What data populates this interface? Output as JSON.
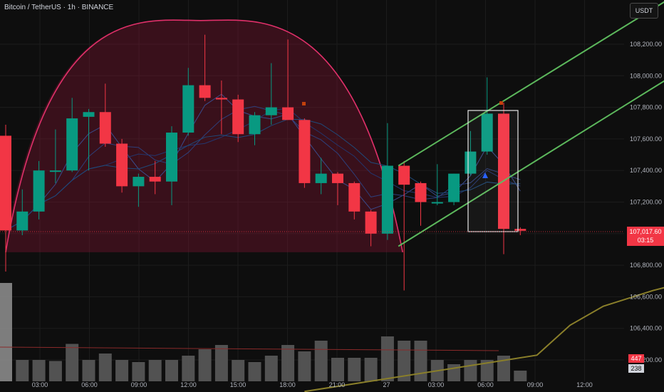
{
  "header": {
    "symbol_title": "Bitcoin / TetherUS · 1h · BINANCE",
    "currency": "USDT"
  },
  "price_label": {
    "price": "107,017.60",
    "countdown": "03:15"
  },
  "volume_labels": {
    "vol_a": "447",
    "vol_b": "238"
  },
  "colors": {
    "up": "#089981",
    "down": "#f23645",
    "arc": "#e0306a",
    "channel": "#5cb85c",
    "ma": "#8a7f2a",
    "volume": "#7a7a7a"
  },
  "chart_data": {
    "type": "candlestick",
    "title": "Bitcoin / TetherUS · 1h · BINANCE",
    "ylim": [
      106200,
      108400
    ],
    "yticks": [
      108200,
      108000,
      107800,
      107600,
      107400,
      107200,
      107000,
      106800,
      106600,
      106400,
      106200
    ],
    "ytick_labels": [
      "108,200.00",
      "108,000.00",
      "107,800.00",
      "107,600.00",
      "107,400.00",
      "107,200.00",
      "107,000.00",
      "106,800.00",
      "106,600.00",
      "106,400.00",
      "106,200.00"
    ],
    "xticks": [
      "03:00",
      "06:00",
      "09:00",
      "12:00",
      "15:00",
      "18:00",
      "21:00",
      "27",
      "03:00",
      "06:00",
      "09:00",
      "12:00"
    ],
    "candles": [
      {
        "o": 107620,
        "h": 107690,
        "l": 106760,
        "c": 107020
      },
      {
        "o": 107020,
        "h": 107280,
        "l": 106990,
        "c": 107140
      },
      {
        "o": 107140,
        "h": 107460,
        "l": 107090,
        "c": 107400
      },
      {
        "o": 107400,
        "h": 107660,
        "l": 107320,
        "c": 107400
      },
      {
        "o": 107400,
        "h": 107860,
        "l": 107390,
        "c": 107730
      },
      {
        "o": 107740,
        "h": 107790,
        "l": 107400,
        "c": 107770
      },
      {
        "o": 107770,
        "h": 107950,
        "l": 107550,
        "c": 107570
      },
      {
        "o": 107570,
        "h": 107600,
        "l": 107260,
        "c": 107300
      },
      {
        "o": 107300,
        "h": 107380,
        "l": 107170,
        "c": 107360
      },
      {
        "o": 107360,
        "h": 107460,
        "l": 107250,
        "c": 107330
      },
      {
        "o": 107330,
        "h": 107680,
        "l": 107180,
        "c": 107640
      },
      {
        "o": 107640,
        "h": 108050,
        "l": 107620,
        "c": 107940
      },
      {
        "o": 107940,
        "h": 108260,
        "l": 107840,
        "c": 107860
      },
      {
        "o": 107860,
        "h": 107970,
        "l": 107630,
        "c": 107850
      },
      {
        "o": 107850,
        "h": 107880,
        "l": 107580,
        "c": 107630
      },
      {
        "o": 107630,
        "h": 107770,
        "l": 107560,
        "c": 107750
      },
      {
        "o": 107750,
        "h": 108080,
        "l": 107690,
        "c": 107800
      },
      {
        "o": 107800,
        "h": 108230,
        "l": 107720,
        "c": 107720
      },
      {
        "o": 107720,
        "h": 107730,
        "l": 107290,
        "c": 107320
      },
      {
        "o": 107320,
        "h": 107480,
        "l": 107250,
        "c": 107380
      },
      {
        "o": 107380,
        "h": 107390,
        "l": 107180,
        "c": 107320
      },
      {
        "o": 107320,
        "h": 107330,
        "l": 107090,
        "c": 107140
      },
      {
        "o": 107140,
        "h": 107150,
        "l": 106920,
        "c": 107000
      },
      {
        "o": 107000,
        "h": 107700,
        "l": 106960,
        "c": 107430
      },
      {
        "o": 107430,
        "h": 107460,
        "l": 106640,
        "c": 107310
      },
      {
        "o": 107320,
        "h": 107330,
        "l": 107050,
        "c": 107200
      },
      {
        "o": 107200,
        "h": 107440,
        "l": 107180,
        "c": 107200
      },
      {
        "o": 107200,
        "h": 107380,
        "l": 107180,
        "c": 107380
      },
      {
        "o": 107380,
        "h": 107650,
        "l": 107370,
        "c": 107520
      },
      {
        "o": 107520,
        "h": 107990,
        "l": 107500,
        "c": 107760
      },
      {
        "o": 107760,
        "h": 107830,
        "l": 106870,
        "c": 107030
      },
      {
        "o": 107030,
        "h": 107040,
        "l": 106990,
        "c": 107018
      }
    ],
    "volume": [
      0.92,
      0.2,
      0.2,
      0.19,
      0.35,
      0.2,
      0.26,
      0.2,
      0.18,
      0.2,
      0.2,
      0.24,
      0.3,
      0.34,
      0.2,
      0.18,
      0.24,
      0.34,
      0.28,
      0.38,
      0.22,
      0.22,
      0.22,
      0.42,
      0.38,
      0.38,
      0.2,
      0.16,
      0.2,
      0.2,
      0.24,
      0.1
    ],
    "ma_slow": [
      [
        18,
        106000
      ],
      [
        32,
        106230
      ],
      [
        34,
        106420
      ],
      [
        36,
        106540
      ],
      [
        39,
        106640
      ],
      [
        42,
        106720
      ],
      [
        45,
        106790
      ],
      [
        48,
        106820
      ],
      [
        50,
        106840
      ]
    ],
    "channel_lines": [
      [
        [
          24,
          106920
        ],
        [
          40,
          108000
        ]
      ],
      [
        [
          24,
          107430
        ],
        [
          40,
          108500
        ]
      ]
    ],
    "arc": {
      "x_start": 0,
      "x_end": 24,
      "top": 108350,
      "base": 106950
    }
  }
}
